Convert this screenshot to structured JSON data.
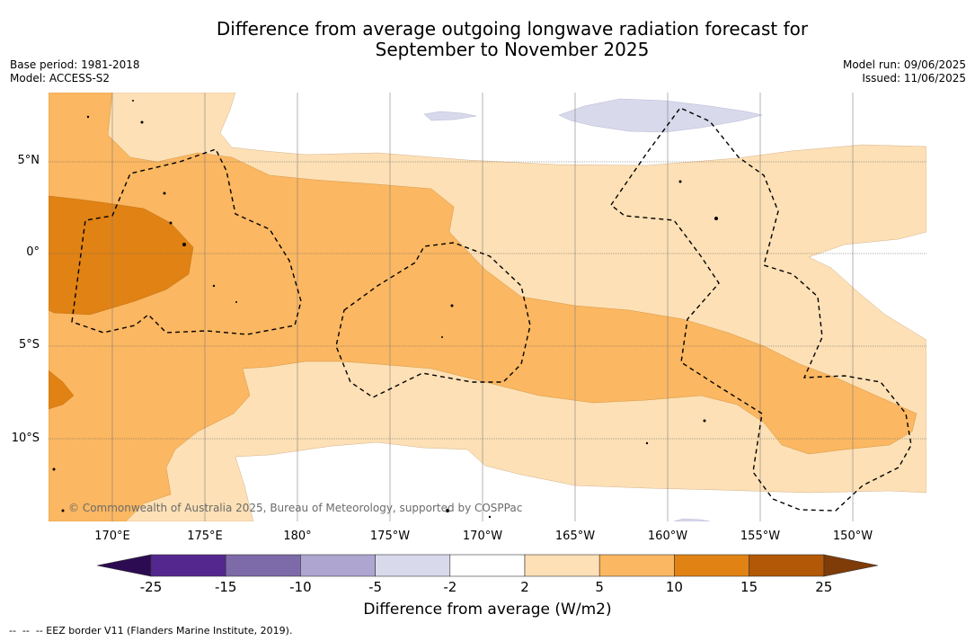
{
  "header": {
    "title_line1": "Difference from average outgoing longwave radiation forecast for",
    "title_line2": "September to November 2025",
    "base_period": "Base period: 1981-2018",
    "model": "Model: ACCESS-S2",
    "model_run": "Model run: 09/06/2025",
    "issued": "Issued: 11/06/2025"
  },
  "map": {
    "lat_labels": [
      "5°N",
      "0°",
      "5°S",
      "10°S"
    ],
    "lon_labels": [
      "170°E",
      "175°E",
      "180°",
      "175°W",
      "170°W",
      "165°W",
      "160°W",
      "155°W",
      "150°W"
    ],
    "copyright": "© Commonwealth of Australia 2025, Bureau of Meteorology, supported by COSPPac"
  },
  "colorbar": {
    "ticks": [
      "-25",
      "-15",
      "-10",
      "-5",
      "-2",
      "2",
      "5",
      "10",
      "15",
      "25"
    ],
    "colors": [
      "#2d0b52",
      "#54278f",
      "#7d6aa9",
      "#aea6d1",
      "#d9d9ec",
      "#ffffff",
      "#fde0b5",
      "#fbb761",
      "#e08214",
      "#b35806",
      "#7f3b08"
    ],
    "label": "Difference from average (W/m2)"
  },
  "legend": {
    "footnote": "--  --  -- EEZ border V11 (Flanders Marine Institute, 2019)."
  }
}
